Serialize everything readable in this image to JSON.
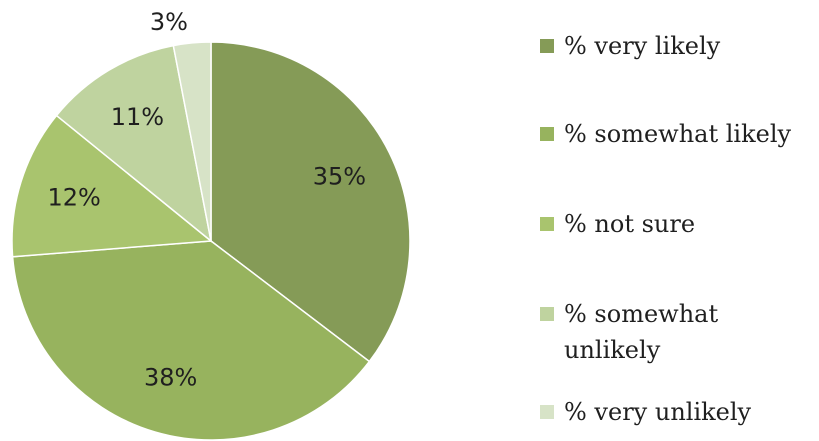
{
  "chart_data": {
    "type": "pie",
    "title": "",
    "slices": [
      {
        "label": "% very likely",
        "value": 35,
        "display": "35%",
        "color": "#859b57"
      },
      {
        "label": "% somewhat likely",
        "value": 38,
        "display": "38%",
        "color": "#97b35e"
      },
      {
        "label": "% not sure",
        "value": 12,
        "display": "12%",
        "color": "#a9c46e"
      },
      {
        "label": "% somewhat unlikely",
        "value": 11,
        "display": "11%",
        "color": "#bfd39f"
      },
      {
        "label": "% very unlikely",
        "value": 3,
        "display": "3%",
        "color": "#d7e3c7"
      }
    ],
    "legend_position": "right",
    "start_angle": "top",
    "direction": "clockwise"
  }
}
